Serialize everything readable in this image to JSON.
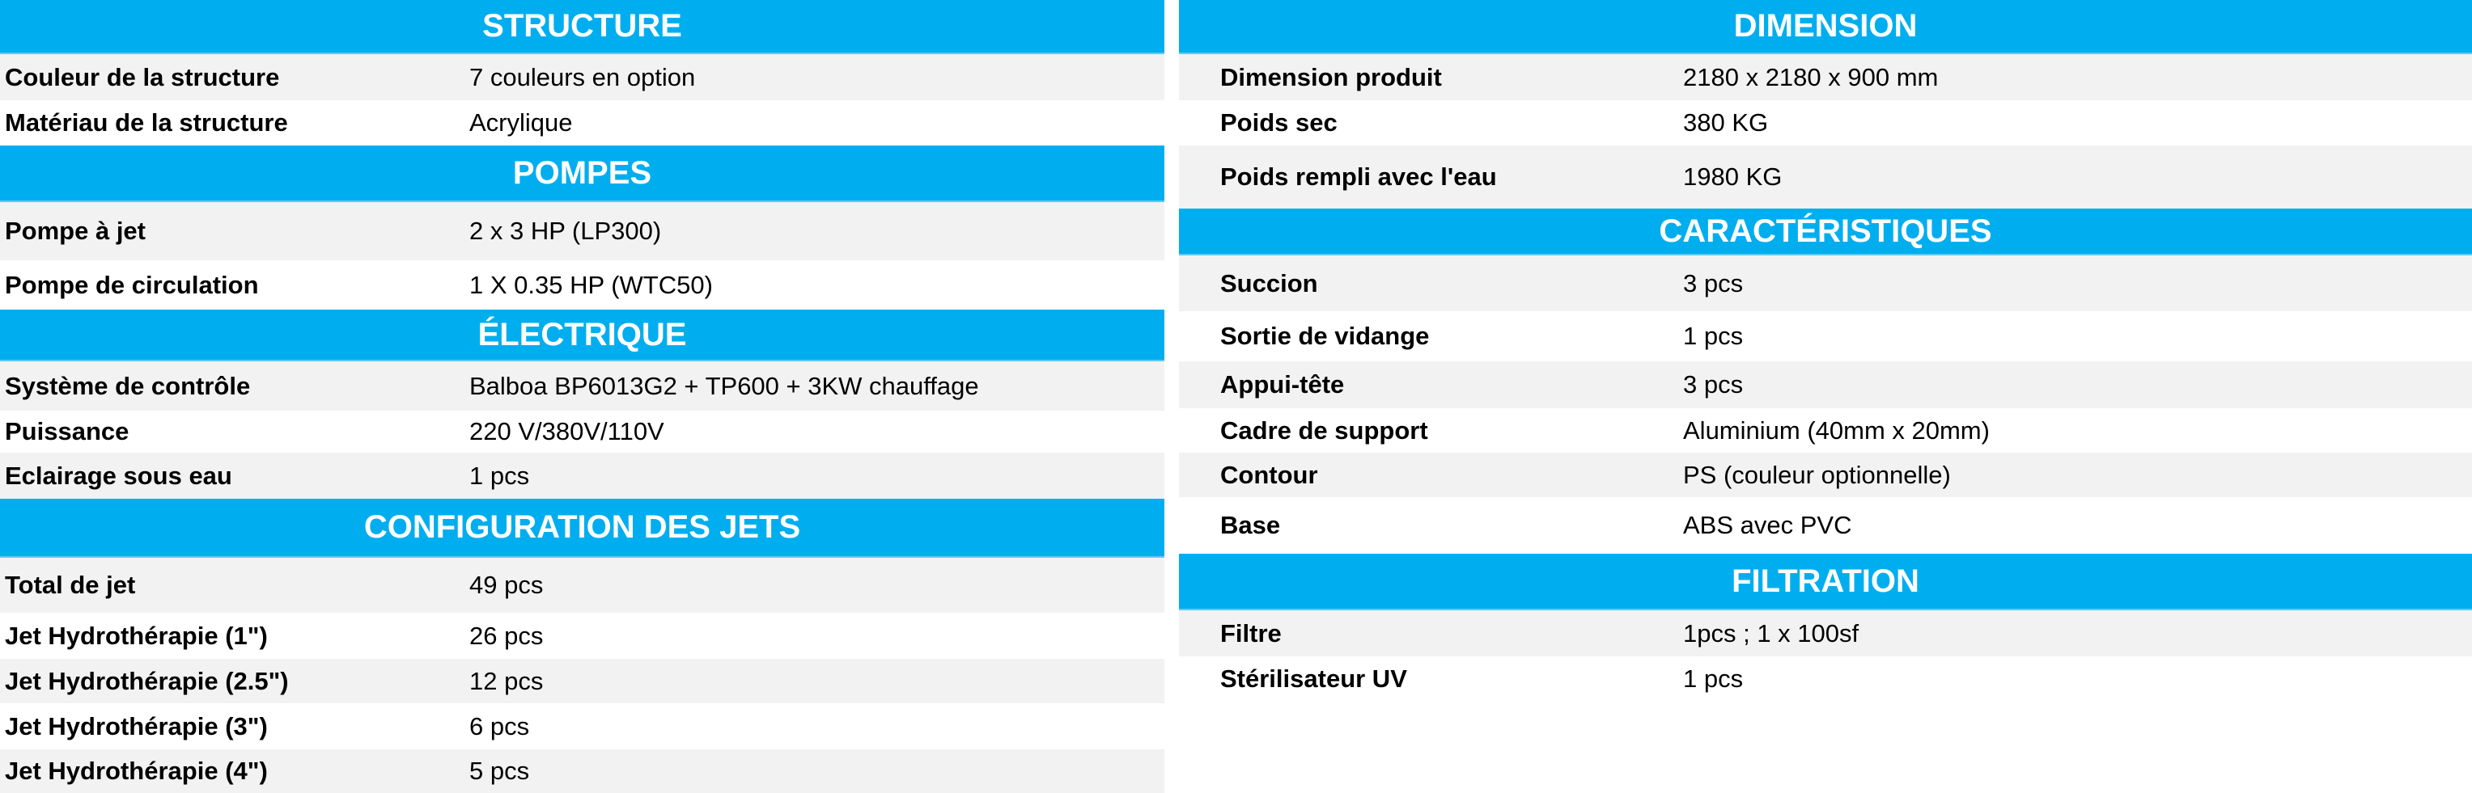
{
  "colors": {
    "header_bg": "#00aeef",
    "header_text": "#ffffff",
    "row_alt": "#f2f2f2"
  },
  "left": [
    {
      "title": "STRUCTURE",
      "rows": [
        {
          "label": "Couleur de la structure",
          "value": "7 couleurs en option"
        },
        {
          "label": "Matériau de la structure",
          "value": "Acrylique"
        }
      ]
    },
    {
      "title": "POMPES",
      "rows": [
        {
          "label": "Pompe à jet",
          "value": "2 x 3 HP (LP300)"
        },
        {
          "label": "Pompe de circulation",
          "value": "1 X 0.35 HP (WTC50)"
        }
      ]
    },
    {
      "title": "ÉLECTRIQUE",
      "rows": [
        {
          "label": "Système de contrôle",
          "value": "Balboa BP6013G2 + TP600 + 3KW chauffage"
        },
        {
          "label": "Puissance",
          "value": "220 V/380V/110V"
        },
        {
          "label": "Eclairage sous eau",
          "value": "1 pcs"
        }
      ]
    },
    {
      "title": "CONFIGURATION DES JETS",
      "rows": [
        {
          "label": "Total de jet",
          "value": "49 pcs"
        },
        {
          "label": "Jet Hydrothérapie (1\")",
          "value": "26 pcs"
        },
        {
          "label": "Jet Hydrothérapie (2.5\")",
          "value": "12 pcs"
        },
        {
          "label": "Jet Hydrothérapie (3\")",
          "value": "6 pcs"
        },
        {
          "label": "Jet Hydrothérapie (4\")",
          "value": "5 pcs"
        }
      ]
    }
  ],
  "right": [
    {
      "title": "DIMENSION",
      "rows": [
        {
          "label": "Dimension produit",
          "value": "2180 x 2180 x 900 mm"
        },
        {
          "label": "Poids sec",
          "value": "380 KG"
        },
        {
          "label": "Poids rempli avec l'eau",
          "value": "1980 KG"
        }
      ]
    },
    {
      "title": "CARACTÉRISTIQUES",
      "rows": [
        {
          "label": "Succion",
          "value": "3 pcs"
        },
        {
          "label": "Sortie de vidange",
          "value": "1 pcs"
        },
        {
          "label": "Appui-tête",
          "value": "3 pcs"
        },
        {
          "label": "Cadre de support",
          "value": "Aluminium (40mm x 20mm)"
        },
        {
          "label": "Contour",
          "value": "PS (couleur optionnelle)"
        },
        {
          "label": "Base",
          "value": "ABS avec PVC"
        }
      ]
    },
    {
      "title": "FILTRATION",
      "rows": [
        {
          "label": "Filtre",
          "value": "1pcs ; 1 x 100sf"
        },
        {
          "label": "Stérilisateur UV",
          "value": "1 pcs"
        }
      ]
    }
  ]
}
